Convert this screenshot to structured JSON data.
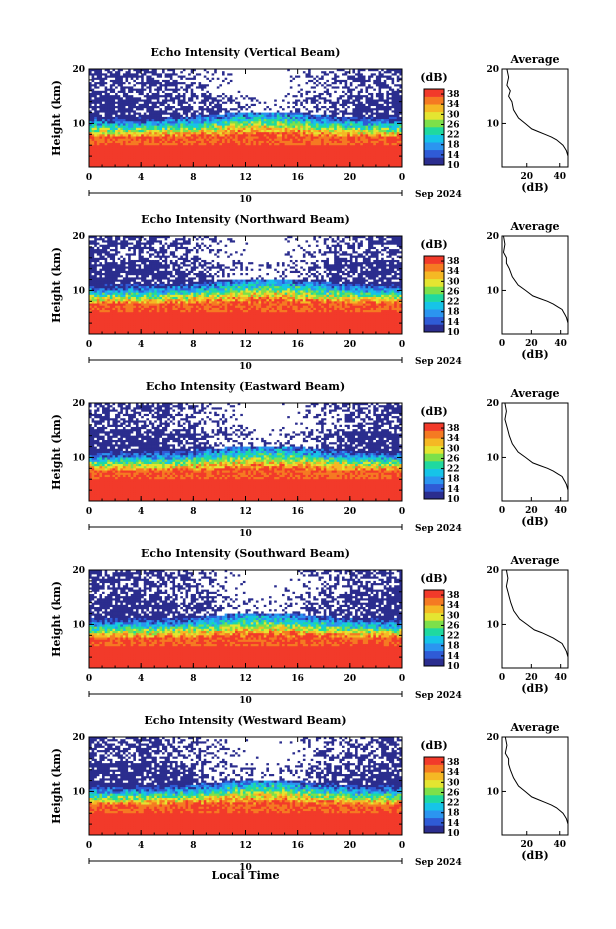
{
  "figure": {
    "xlabel": "Local Time",
    "date_label": "10",
    "date_suffix": "Sep 2024",
    "avg_title": "Average",
    "avg_xlabel": "(dB)",
    "cbar_title": "(dB)",
    "ylabel": "Height (km)"
  },
  "chart_data": [
    {
      "type": "heatmap",
      "title": "Echo Intensity (Vertical Beam)",
      "xlabel": "Local Time",
      "ylabel": "Height (km)",
      "xlim": [
        0,
        24
      ],
      "ylim": [
        2,
        20
      ],
      "xticks": [
        "0",
        "4",
        "8",
        "12",
        "16",
        "20",
        "0"
      ],
      "yticks": [
        "10",
        "20"
      ],
      "colorbar": {
        "label": "(dB)",
        "range": [
          10,
          40
        ],
        "ticks": [
          "10",
          "14",
          "18",
          "22",
          "26",
          "30",
          "34",
          "38"
        ]
      },
      "colors": [
        "#2b2d8e",
        "#2f5bd6",
        "#2b95f0",
        "#16c4e8",
        "#1fd9a0",
        "#7de04a",
        "#e4e531",
        "#f5b824",
        "#f57a22",
        "#f23a2a"
      ],
      "blank_color": "#ffffff"
    },
    {
      "type": "line",
      "title": "Average",
      "xlabel": "(dB)",
      "xlim": [
        5,
        45
      ],
      "ylim": [
        2,
        20
      ],
      "xticks": [
        "20",
        "40"
      ],
      "yticks": [
        "10",
        "20"
      ],
      "x": [
        8,
        9,
        8,
        10,
        9,
        11,
        12,
        15,
        19,
        23,
        27,
        31,
        35,
        38,
        40,
        42,
        43,
        44,
        45
      ],
      "y": [
        20,
        18.5,
        17,
        16,
        15,
        14,
        12.5,
        11,
        10,
        9,
        8.5,
        8,
        7.5,
        7,
        6.5,
        6,
        5.5,
        5,
        4
      ]
    },
    {
      "type": "heatmap",
      "title": "Echo Intensity (Northward Beam)",
      "xlabel": "Local Time",
      "ylabel": "Height (km)",
      "xlim": [
        0,
        24
      ],
      "ylim": [
        2,
        20
      ],
      "xticks": [
        "0",
        "4",
        "8",
        "12",
        "16",
        "20",
        "0"
      ],
      "yticks": [
        "10",
        "20"
      ],
      "colorbar": {
        "label": "(dB)",
        "range": [
          10,
          40
        ],
        "ticks": [
          "10",
          "14",
          "18",
          "22",
          "26",
          "30",
          "34",
          "38"
        ]
      }
    },
    {
      "type": "line",
      "title": "Average",
      "xlabel": "(dB)",
      "xlim": [
        0,
        45
      ],
      "ylim": [
        2,
        20
      ],
      "xticks": [
        "0",
        "20",
        "40"
      ],
      "yticks": [
        "10",
        "20"
      ],
      "x": [
        1,
        2,
        1,
        3,
        3,
        5,
        7,
        11,
        16,
        21,
        26,
        31,
        35,
        38,
        41,
        42,
        43,
        44,
        45
      ],
      "y": [
        20,
        18.5,
        17,
        16,
        15,
        14,
        12.5,
        11,
        10,
        9,
        8.5,
        8,
        7.5,
        7,
        6.5,
        6,
        5.5,
        5,
        4
      ]
    },
    {
      "type": "heatmap",
      "title": "Echo Intensity (Eastward Beam)",
      "xlabel": "Local Time",
      "ylabel": "Height (km)",
      "xlim": [
        0,
        24
      ],
      "ylim": [
        2,
        20
      ],
      "xticks": [
        "0",
        "4",
        "8",
        "12",
        "16",
        "20",
        "0"
      ],
      "yticks": [
        "10",
        "20"
      ],
      "colorbar": {
        "label": "(dB)",
        "range": [
          10,
          40
        ],
        "ticks": [
          "10",
          "14",
          "18",
          "22",
          "26",
          "30",
          "34",
          "38"
        ]
      }
    },
    {
      "type": "line",
      "title": "Average",
      "xlabel": "(dB)",
      "xlim": [
        0,
        45
      ],
      "ylim": [
        2,
        20
      ],
      "xticks": [
        "0",
        "20",
        "40"
      ],
      "yticks": [
        "10",
        "20"
      ],
      "x": [
        2,
        3,
        2,
        3,
        4,
        5,
        7,
        11,
        16,
        21,
        26,
        31,
        35,
        38,
        41,
        42,
        43,
        44,
        45
      ],
      "y": [
        20,
        18.5,
        17,
        16,
        15,
        14,
        12.5,
        11,
        10,
        9,
        8.5,
        8,
        7.5,
        7,
        6.5,
        6,
        5.5,
        5,
        4
      ]
    },
    {
      "type": "heatmap",
      "title": "Echo Intensity (Southward Beam)",
      "xlabel": "Local Time",
      "ylabel": "Height (km)",
      "xlim": [
        0,
        24
      ],
      "ylim": [
        2,
        20
      ],
      "xticks": [
        "0",
        "4",
        "8",
        "12",
        "16",
        "20",
        "0"
      ],
      "yticks": [
        "10",
        "20"
      ],
      "colorbar": {
        "label": "(dB)",
        "range": [
          10,
          40
        ],
        "ticks": [
          "10",
          "14",
          "18",
          "22",
          "26",
          "30",
          "34",
          "38"
        ]
      }
    },
    {
      "type": "line",
      "title": "Average",
      "xlabel": "(dB)",
      "xlim": [
        0,
        45
      ],
      "ylim": [
        2,
        20
      ],
      "xticks": [
        "0",
        "20",
        "40"
      ],
      "yticks": [
        "10",
        "20"
      ],
      "x": [
        3,
        4,
        3,
        4,
        5,
        6,
        8,
        12,
        17,
        22,
        27,
        31,
        35,
        38,
        41,
        42,
        43,
        44,
        45
      ],
      "y": [
        20,
        18.5,
        17,
        16,
        15,
        14,
        12.5,
        11,
        10,
        9,
        8.5,
        8,
        7.5,
        7,
        6.5,
        6,
        5.5,
        5,
        4
      ]
    },
    {
      "type": "heatmap",
      "title": "Echo Intensity (Westward Beam)",
      "xlabel": "Local Time",
      "ylabel": "Height (km)",
      "xlim": [
        0,
        24
      ],
      "ylim": [
        2,
        20
      ],
      "xticks": [
        "0",
        "4",
        "8",
        "12",
        "16",
        "20",
        "0"
      ],
      "yticks": [
        "10",
        "20"
      ],
      "colorbar": {
        "label": "(dB)",
        "range": [
          10,
          40
        ],
        "ticks": [
          "10",
          "14",
          "18",
          "22",
          "26",
          "30",
          "34",
          "38"
        ]
      }
    },
    {
      "type": "line",
      "title": "Average",
      "xlabel": "(dB)",
      "xlim": [
        5,
        45
      ],
      "ylim": [
        2,
        20
      ],
      "xticks": [
        "20",
        "40"
      ],
      "yticks": [
        "10",
        "20"
      ],
      "x": [
        7,
        8,
        7,
        9,
        9,
        10,
        12,
        15,
        19,
        23,
        27,
        31,
        35,
        38,
        40,
        42,
        43,
        44,
        45
      ],
      "y": [
        20,
        18.5,
        17,
        16,
        15,
        14,
        12.5,
        11,
        10,
        9,
        8.5,
        8,
        7.5,
        7,
        6.5,
        6,
        5.5,
        5,
        4
      ]
    }
  ]
}
